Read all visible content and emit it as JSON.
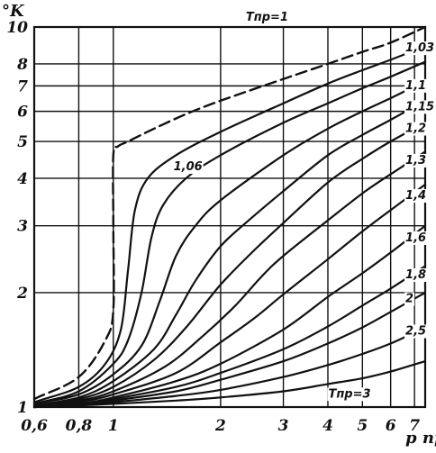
{
  "chart_data": {
    "type": "line",
    "title": "",
    "xlabel": "p пр",
    "ylabel": "°K",
    "xscale": "log",
    "yscale": "log",
    "xlim": [
      0.6,
      7.5
    ],
    "ylim": [
      1,
      10
    ],
    "x_ticks": [
      0.6,
      0.8,
      1,
      2,
      3,
      4,
      5,
      6,
      7
    ],
    "x_tick_labels": [
      "0,6",
      "0,8",
      "1",
      "2",
      "3",
      "4",
      "5",
      "6",
      "7"
    ],
    "y_ticks": [
      1,
      2,
      3,
      4,
      5,
      6,
      7,
      8,
      10
    ],
    "y_tick_labels": [
      "1",
      "2",
      "3",
      "4",
      "5",
      "6",
      "7",
      "8",
      "10"
    ],
    "grid": true,
    "series": [
      {
        "name": "Tпр=1",
        "label": "Tпр=1",
        "dashed": true,
        "x": [
          0.6,
          0.8,
          0.95,
          1.0,
          1.0,
          1.0,
          1.03,
          1.1,
          1.3,
          1.6,
          2.0,
          3.0,
          4.0,
          5.0,
          6.0,
          7.5
        ],
        "y": [
          1.05,
          1.2,
          1.5,
          1.8,
          3.0,
          4.6,
          4.85,
          5.0,
          5.4,
          5.9,
          6.4,
          7.3,
          8.0,
          8.6,
          9.1,
          10.0
        ]
      },
      {
        "name": "1,03",
        "label": "1,03",
        "x": [
          0.6,
          0.8,
          0.95,
          1.05,
          1.1,
          1.15,
          1.25,
          1.5,
          2.0,
          3.0,
          4.0,
          5.0,
          6.0,
          7.5
        ],
        "y": [
          1.03,
          1.13,
          1.3,
          1.6,
          2.3,
          3.3,
          4.0,
          4.6,
          5.3,
          6.3,
          7.1,
          7.7,
          8.2,
          8.9
        ]
      },
      {
        "name": "1,06",
        "label": "1,06",
        "x": [
          0.6,
          0.8,
          1.0,
          1.1,
          1.2,
          1.28,
          1.38,
          1.6,
          2.0,
          3.0,
          4.0,
          5.0,
          6.0,
          7.5
        ],
        "y": [
          1.02,
          1.1,
          1.3,
          1.5,
          2.0,
          2.8,
          3.4,
          4.0,
          4.6,
          5.6,
          6.3,
          6.9,
          7.4,
          8.1
        ]
      },
      {
        "name": "1,1",
        "label": "1,1",
        "x": [
          0.6,
          0.8,
          1.0,
          1.2,
          1.35,
          1.5,
          1.7,
          2.0,
          3.0,
          4.0,
          5.0,
          6.0,
          7.5
        ],
        "y": [
          1.02,
          1.08,
          1.22,
          1.45,
          1.9,
          2.5,
          3.0,
          3.5,
          4.6,
          5.4,
          6.0,
          6.5,
          7.2
        ]
      },
      {
        "name": "1,15",
        "label": "1,15",
        "x": [
          0.6,
          0.8,
          1.0,
          1.3,
          1.5,
          1.7,
          2.0,
          2.4,
          3.0,
          4.0,
          5.0,
          6.0,
          7.5
        ],
        "y": [
          1.01,
          1.06,
          1.17,
          1.42,
          1.75,
          2.15,
          2.65,
          3.1,
          3.7,
          4.6,
          5.2,
          5.7,
          6.4
        ]
      },
      {
        "name": "1,2",
        "label": "1,2",
        "x": [
          0.6,
          0.8,
          1.0,
          1.3,
          1.6,
          2.0,
          2.5,
          3.0,
          4.0,
          5.0,
          6.0,
          7.5
        ],
        "y": [
          1.01,
          1.05,
          1.13,
          1.33,
          1.62,
          2.1,
          2.6,
          3.05,
          3.9,
          4.5,
          5.0,
          5.6
        ]
      },
      {
        "name": "1,3",
        "label": "1,3",
        "x": [
          0.6,
          0.8,
          1.0,
          1.4,
          1.8,
          2.2,
          2.6,
          3.0,
          4.0,
          5.0,
          6.0,
          7.5
        ],
        "y": [
          1.01,
          1.04,
          1.1,
          1.28,
          1.55,
          1.85,
          2.2,
          2.5,
          3.1,
          3.65,
          4.1,
          4.7
        ]
      },
      {
        "name": "1,4",
        "label": "1,4",
        "x": [
          0.6,
          0.8,
          1.0,
          1.5,
          2.0,
          2.5,
          3.0,
          4.0,
          5.0,
          6.0,
          7.5
        ],
        "y": [
          1.0,
          1.03,
          1.08,
          1.23,
          1.48,
          1.72,
          1.98,
          2.45,
          2.9,
          3.3,
          3.85
        ]
      },
      {
        "name": "1,6",
        "label": "1,6",
        "x": [
          0.6,
          0.8,
          1.0,
          1.5,
          2.0,
          3.0,
          4.0,
          5.0,
          6.0,
          7.5
        ],
        "y": [
          1.0,
          1.02,
          1.06,
          1.17,
          1.3,
          1.6,
          1.95,
          2.25,
          2.55,
          3.0
        ]
      },
      {
        "name": "1,8",
        "label": "1,8",
        "x": [
          0.6,
          0.8,
          1.0,
          1.5,
          2.0,
          3.0,
          4.0,
          5.0,
          6.0,
          7.5
        ],
        "y": [
          1.0,
          1.02,
          1.05,
          1.13,
          1.23,
          1.42,
          1.63,
          1.85,
          2.05,
          2.35
        ]
      },
      {
        "name": "2",
        "label": "2",
        "x": [
          0.6,
          0.8,
          1.0,
          1.5,
          2.0,
          3.0,
          4.0,
          5.0,
          6.0,
          7.5
        ],
        "y": [
          1.0,
          1.01,
          1.04,
          1.1,
          1.18,
          1.32,
          1.47,
          1.62,
          1.78,
          2.0
        ]
      },
      {
        "name": "2,5",
        "label": "2,5",
        "x": [
          0.6,
          0.8,
          1.0,
          1.5,
          2.0,
          3.0,
          4.0,
          5.0,
          6.0,
          7.5
        ],
        "y": [
          1.0,
          1.01,
          1.03,
          1.07,
          1.11,
          1.2,
          1.29,
          1.38,
          1.47,
          1.62
        ]
      },
      {
        "name": "Tпр=3",
        "label": "Tпр=3",
        "x": [
          0.6,
          0.8,
          1.0,
          1.5,
          2.0,
          3.0,
          4.0,
          5.0,
          6.0,
          7.5
        ],
        "y": [
          1.0,
          1.01,
          1.02,
          1.04,
          1.06,
          1.1,
          1.15,
          1.19,
          1.24,
          1.32
        ]
      }
    ]
  }
}
